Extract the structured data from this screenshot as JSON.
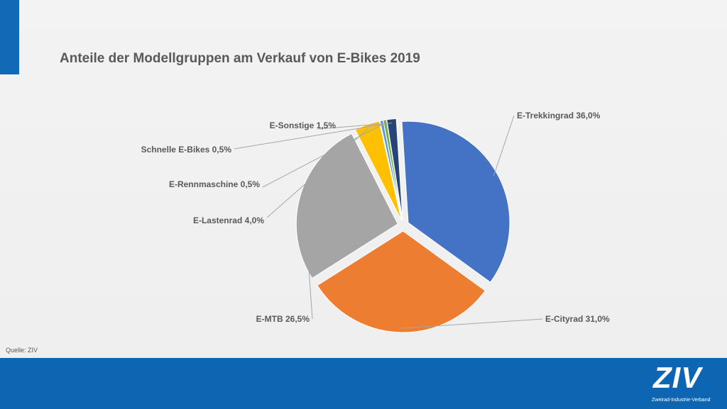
{
  "slide": {
    "title": "Anteile der Modellgruppen am Verkauf von E-Bikes 2019",
    "source": "Quelle: ZIV",
    "logo": {
      "text": "ZIV",
      "subtitle": "Zweirad-Industrie-Verband"
    }
  },
  "colors": {
    "accent": "#1269b5",
    "footer": "#0e66b3"
  },
  "chart_data": {
    "type": "pie",
    "title": "Anteile der Modellgruppen am Verkauf von E-Bikes 2019",
    "unit": "%",
    "legend": "none",
    "slices": [
      {
        "name": "E-Trekkingrad",
        "value": 36.0,
        "label": "E-Trekkingrad 36,0%",
        "color": "#4472c4"
      },
      {
        "name": "E-Cityrad",
        "value": 31.0,
        "label": "E-Cityrad 31,0%",
        "color": "#ed7d31"
      },
      {
        "name": "E-MTB",
        "value": 26.5,
        "label": "E-MTB 26,5%",
        "color": "#a5a5a5"
      },
      {
        "name": "E-Lastenrad",
        "value": 4.0,
        "label": "E-Lastenrad 4,0%",
        "color": "#ffc000"
      },
      {
        "name": "E-Rennmaschine",
        "value": 0.5,
        "label": "E-Rennmaschine 0,5%",
        "color": "#5b9bd5"
      },
      {
        "name": "Schnelle E-Bikes",
        "value": 0.5,
        "label": "Schnelle E-Bikes 0,5%",
        "color": "#70ad47"
      },
      {
        "name": "E-Sonstige",
        "value": 1.5,
        "label": "E-Sonstige 1,5%",
        "color": "#264478"
      }
    ]
  }
}
